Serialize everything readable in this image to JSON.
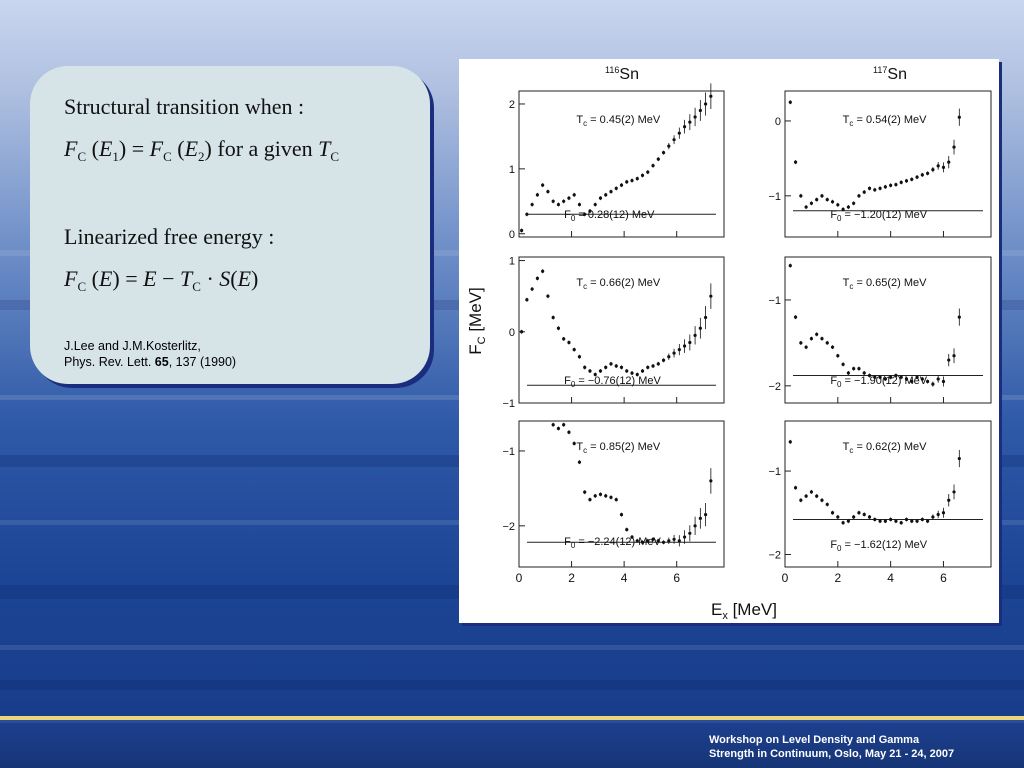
{
  "card": {
    "line1": "Structural transition when :",
    "eq1": {
      "f1": "F",
      "c1": "C",
      "arg1": "E",
      "idx1": "1",
      "f2": "F",
      "c2": "C",
      "arg2": "E",
      "idx2": "2",
      "phrase": "for a given",
      "t": "T",
      "tc": "C"
    },
    "line3": "Linearized free energy :",
    "eq2": {
      "f": "F",
      "fc": "C",
      "arg": "E",
      "e": "E",
      "t": "T",
      "tc": "C",
      "s": "S",
      "sarg": "E"
    },
    "ref_line1": "J.Lee and J.M.Kosterlitz,",
    "ref_journal": "Phys. Rev. Lett. ",
    "ref_volume": "65",
    "ref_rest": ", 137 (1990)"
  },
  "figure": {
    "col_titles": [
      {
        "mass": "116",
        "element": "Sn"
      },
      {
        "mass": "117",
        "element": "Sn"
      }
    ],
    "ylabel_main": "F",
    "ylabel_sub": "C",
    "ylabel_unit": " [MeV]",
    "xlabel_main": "E",
    "xlabel_sub": "x",
    "xlabel_unit": " [MeV]",
    "x_ticks": [
      "0",
      "2",
      "4",
      "6"
    ]
  },
  "chart_data": [
    {
      "type": "scatter",
      "nucleus": "116Sn",
      "tc_label": "T",
      "tc_value": "= 0.45(2) MeV",
      "f0_label": "F",
      "f0_value": "= 0.28(12) MeV",
      "xlim": [
        0,
        7.8
      ],
      "ylim": [
        -0.05,
        2.2
      ],
      "yticks": [
        0,
        1,
        2
      ],
      "y_tick_labels": [
        "0",
        "1",
        "2"
      ],
      "hline": 0.3,
      "x": [
        0.1,
        0.3,
        0.5,
        0.7,
        0.9,
        1.1,
        1.3,
        1.5,
        1.7,
        1.9,
        2.1,
        2.3,
        2.5,
        2.7,
        2.9,
        3.1,
        3.3,
        3.5,
        3.7,
        3.9,
        4.1,
        4.3,
        4.5,
        4.7,
        4.9,
        5.1,
        5.3,
        5.5,
        5.7,
        5.9,
        6.1,
        6.3,
        6.5,
        6.7,
        6.9,
        7.1,
        7.3
      ],
      "y": [
        0.05,
        0.3,
        0.45,
        0.6,
        0.75,
        0.65,
        0.5,
        0.45,
        0.5,
        0.55,
        0.6,
        0.45,
        0.3,
        0.35,
        0.45,
        0.55,
        0.6,
        0.65,
        0.7,
        0.75,
        0.8,
        0.82,
        0.85,
        0.9,
        0.95,
        1.05,
        1.15,
        1.25,
        1.35,
        1.45,
        1.55,
        1.65,
        1.72,
        1.8,
        1.9,
        2.0,
        2.12
      ]
    },
    {
      "type": "scatter",
      "nucleus": "117Sn",
      "tc_label": "T",
      "tc_value": "= 0.54(2) MeV",
      "f0_label": "F",
      "f0_value": "= −1.20(12) MeV",
      "xlim": [
        0,
        7.8
      ],
      "ylim": [
        -1.55,
        0.4
      ],
      "yticks": [
        -1,
        0
      ],
      "y_tick_labels": [
        "−1",
        "0"
      ],
      "hline": -1.2,
      "x": [
        0.2,
        0.4,
        0.6,
        0.8,
        1.0,
        1.2,
        1.4,
        1.6,
        1.8,
        2.0,
        2.2,
        2.4,
        2.6,
        2.8,
        3.0,
        3.2,
        3.4,
        3.6,
        3.8,
        4.0,
        4.2,
        4.4,
        4.6,
        4.8,
        5.0,
        5.2,
        5.4,
        5.6,
        5.8,
        6.0,
        6.2,
        6.4,
        6.6
      ],
      "y": [
        0.25,
        -0.55,
        -1.0,
        -1.15,
        -1.1,
        -1.05,
        -1.0,
        -1.05,
        -1.08,
        -1.12,
        -1.18,
        -1.15,
        -1.1,
        -1.0,
        -0.95,
        -0.9,
        -0.92,
        -0.9,
        -0.88,
        -0.86,
        -0.85,
        -0.82,
        -0.8,
        -0.78,
        -0.75,
        -0.72,
        -0.7,
        -0.65,
        -0.6,
        -0.62,
        -0.55,
        -0.35,
        0.05
      ]
    },
    {
      "type": "scatter",
      "nucleus": "116Sn",
      "tc_label": "T",
      "tc_value": "= 0.66(2) MeV",
      "f0_label": "F",
      "f0_value": "= −0.76(12) MeV",
      "xlim": [
        0,
        7.8
      ],
      "ylim": [
        -1.0,
        1.05
      ],
      "yticks": [
        -1,
        0,
        1
      ],
      "y_tick_labels": [
        "−1",
        "0",
        "1"
      ],
      "hline": -0.75,
      "x": [
        0.1,
        0.3,
        0.5,
        0.7,
        0.9,
        1.1,
        1.3,
        1.5,
        1.7,
        1.9,
        2.1,
        2.3,
        2.5,
        2.7,
        2.9,
        3.1,
        3.3,
        3.5,
        3.7,
        3.9,
        4.1,
        4.3,
        4.5,
        4.7,
        4.9,
        5.1,
        5.3,
        5.5,
        5.7,
        5.9,
        6.1,
        6.3,
        6.5,
        6.7,
        6.9,
        7.1,
        7.3
      ],
      "y": [
        0.0,
        0.45,
        0.6,
        0.75,
        0.85,
        0.5,
        0.2,
        0.05,
        -0.1,
        -0.15,
        -0.25,
        -0.35,
        -0.5,
        -0.55,
        -0.6,
        -0.55,
        -0.5,
        -0.45,
        -0.48,
        -0.5,
        -0.55,
        -0.58,
        -0.6,
        -0.55,
        -0.5,
        -0.48,
        -0.45,
        -0.4,
        -0.35,
        -0.3,
        -0.25,
        -0.2,
        -0.15,
        -0.05,
        0.05,
        0.2,
        0.5
      ]
    },
    {
      "type": "scatter",
      "nucleus": "117Sn",
      "tc_label": "T",
      "tc_value": "= 0.65(2) MeV",
      "f0_label": "F",
      "f0_value": "= −1.90(12) MeV",
      "xlim": [
        0,
        7.8
      ],
      "ylim": [
        -2.2,
        -0.5
      ],
      "yticks": [
        -2,
        -1
      ],
      "y_tick_labels": [
        "−2",
        "−1"
      ],
      "hline": -1.88,
      "x": [
        0.2,
        0.4,
        0.6,
        0.8,
        1.0,
        1.2,
        1.4,
        1.6,
        1.8,
        2.0,
        2.2,
        2.4,
        2.6,
        2.8,
        3.0,
        3.2,
        3.4,
        3.6,
        3.8,
        4.0,
        4.2,
        4.4,
        4.6,
        4.8,
        5.0,
        5.2,
        5.4,
        5.6,
        5.8,
        6.0,
        6.2,
        6.4,
        6.6
      ],
      "y": [
        -0.6,
        -1.2,
        -1.5,
        -1.55,
        -1.45,
        -1.4,
        -1.45,
        -1.5,
        -1.55,
        -1.65,
        -1.75,
        -1.85,
        -1.8,
        -1.8,
        -1.85,
        -1.88,
        -1.9,
        -1.9,
        -1.92,
        -1.9,
        -1.88,
        -1.9,
        -1.92,
        -1.95,
        -1.9,
        -1.92,
        -1.95,
        -1.98,
        -1.92,
        -1.95,
        -1.7,
        -1.65,
        -1.2
      ]
    },
    {
      "type": "scatter",
      "nucleus": "116Sn",
      "tc_label": "T",
      "tc_value": "= 0.85(2) MeV",
      "f0_label": "F",
      "f0_value": "= −2.24(12) MeV",
      "xlim": [
        0,
        7.8
      ],
      "ylim": [
        -2.55,
        -0.6
      ],
      "yticks": [
        -2,
        -1
      ],
      "y_tick_labels": [
        "−2",
        "−1"
      ],
      "hline": -2.22,
      "x": [
        1.3,
        1.5,
        1.7,
        1.9,
        2.1,
        2.3,
        2.5,
        2.7,
        2.9,
        3.1,
        3.3,
        3.5,
        3.7,
        3.9,
        4.1,
        4.3,
        4.5,
        4.7,
        4.9,
        5.1,
        5.3,
        5.5,
        5.7,
        5.9,
        6.1,
        6.3,
        6.5,
        6.7,
        6.9,
        7.1,
        7.3
      ],
      "y": [
        -0.65,
        -0.7,
        -0.65,
        -0.75,
        -0.9,
        -1.15,
        -1.55,
        -1.65,
        -1.6,
        -1.58,
        -1.6,
        -1.62,
        -1.65,
        -1.85,
        -2.05,
        -2.15,
        -2.2,
        -2.22,
        -2.2,
        -2.18,
        -2.2,
        -2.22,
        -2.2,
        -2.18,
        -2.2,
        -2.15,
        -2.1,
        -2.0,
        -1.9,
        -1.85,
        -1.4
      ]
    },
    {
      "type": "scatter",
      "nucleus": "117Sn",
      "tc_label": "T",
      "tc_value": "= 0.62(2) MeV",
      "f0_label": "F",
      "f0_value": "= −1.62(12) MeV",
      "xlim": [
        0,
        7.8
      ],
      "ylim": [
        -2.15,
        -0.4
      ],
      "yticks": [
        -2,
        -1
      ],
      "y_tick_labels": [
        "−2",
        "−1"
      ],
      "hline": -1.58,
      "x": [
        0.2,
        0.4,
        0.6,
        0.8,
        1.0,
        1.2,
        1.4,
        1.6,
        1.8,
        2.0,
        2.2,
        2.4,
        2.6,
        2.8,
        3.0,
        3.2,
        3.4,
        3.6,
        3.8,
        4.0,
        4.2,
        4.4,
        4.6,
        4.8,
        5.0,
        5.2,
        5.4,
        5.6,
        5.8,
        6.0,
        6.2,
        6.4,
        6.6
      ],
      "y": [
        -0.65,
        -1.2,
        -1.35,
        -1.3,
        -1.25,
        -1.3,
        -1.35,
        -1.4,
        -1.5,
        -1.55,
        -1.62,
        -1.6,
        -1.55,
        -1.5,
        -1.52,
        -1.55,
        -1.58,
        -1.6,
        -1.6,
        -1.58,
        -1.6,
        -1.62,
        -1.58,
        -1.6,
        -1.6,
        -1.58,
        -1.6,
        -1.55,
        -1.52,
        -1.5,
        -1.35,
        -1.25,
        -0.85
      ]
    }
  ],
  "footer": {
    "line1": "Workshop on  Level Density and  Gamma",
    "line2": "Strength in Continuum, Oslo, May 21 - 24, 2007"
  }
}
